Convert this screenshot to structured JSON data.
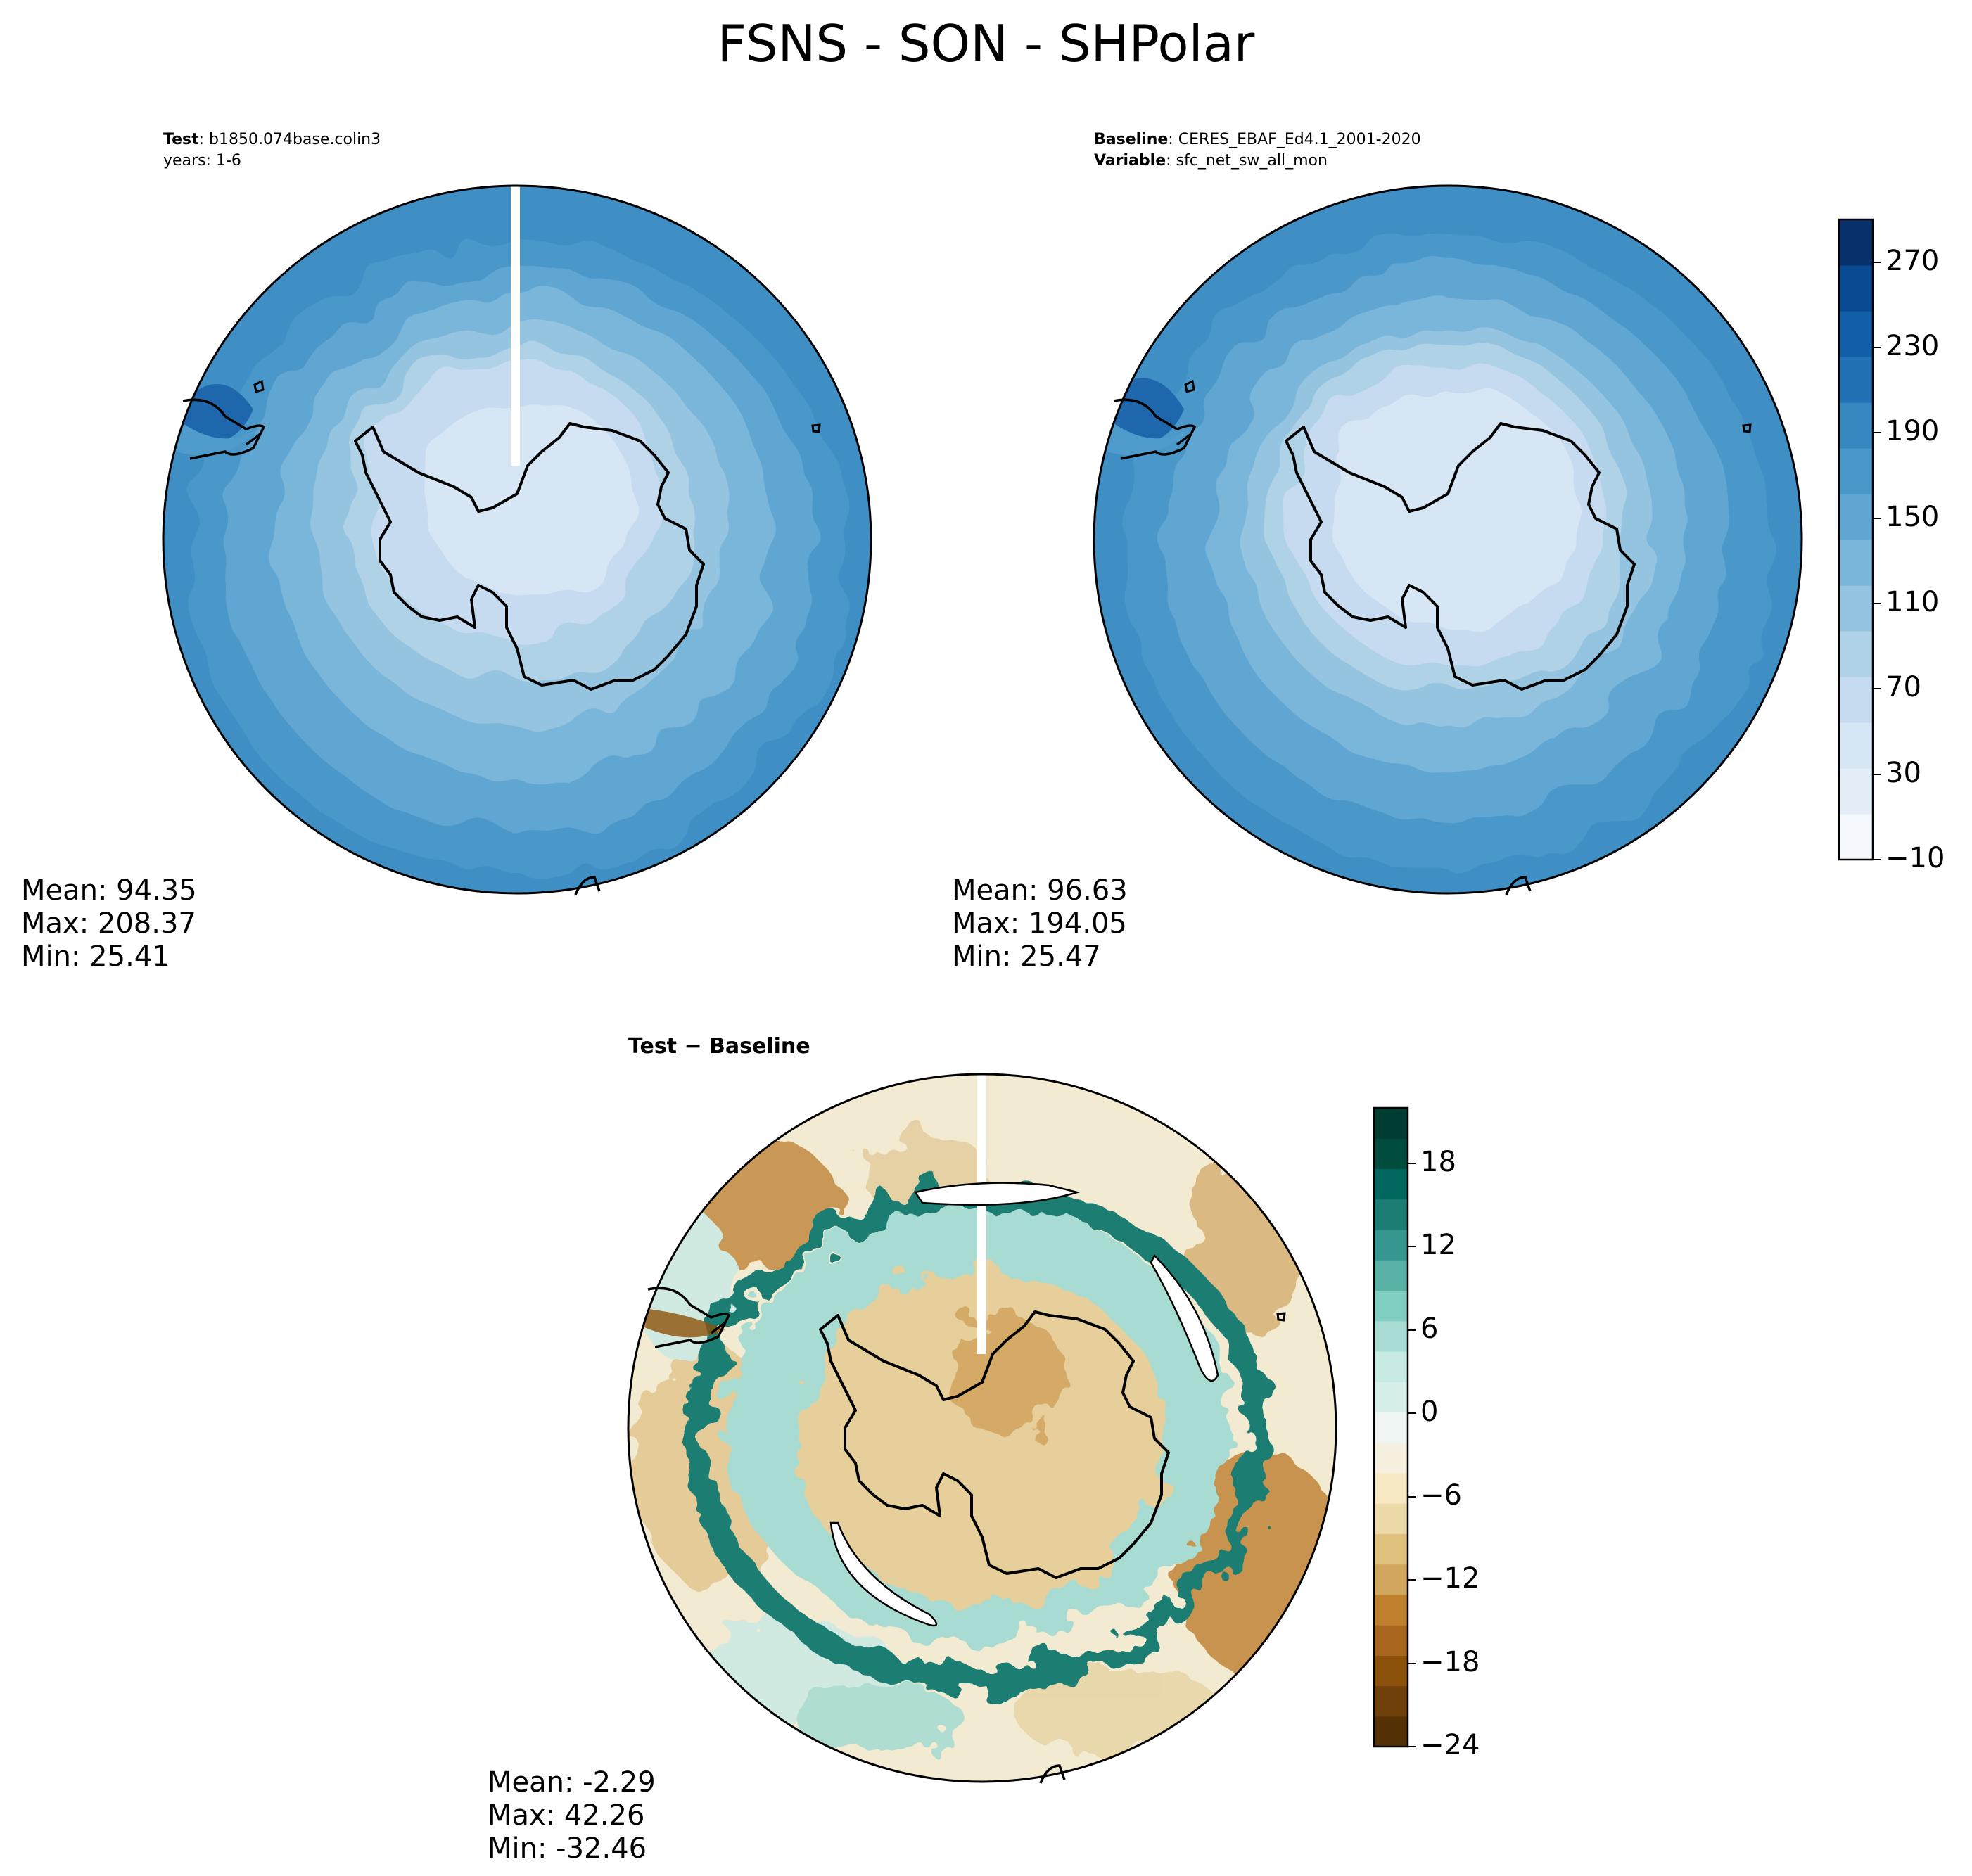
{
  "figure": {
    "title": "FSNS - SON - SHPolar"
  },
  "panels": {
    "test": {
      "label_bold": "Test",
      "label_text": ": b1850.074base.colin3",
      "line2": "years: 1-6",
      "mean": "Mean: 94.35",
      "max": "Max: 208.37",
      "min": "Min: 25.41"
    },
    "baseline": {
      "label_bold": "Baseline",
      "label_text": ": CERES_EBAF_Ed4.1_2001-2020",
      "line2_bold": "Variable",
      "line2_text": ": sfc_net_sw_all_mon",
      "mean": "Mean: 96.63",
      "max": "Max: 194.05",
      "min": "Min: 25.47"
    },
    "diff": {
      "title": "Test − Baseline",
      "mean": "Mean: -2.29",
      "max": "Max: 42.26",
      "min": "Min: -32.46"
    }
  },
  "colorbars": {
    "main": {
      "ticks": [
        "270",
        "230",
        "190",
        "150",
        "110",
        "70",
        "30",
        "−10"
      ],
      "range": [
        -10,
        290
      ],
      "colors": [
        "#f5f9fe",
        "#e3eef8",
        "#d6e6f4",
        "#c6dbef",
        "#b0d2e7",
        "#94c4df",
        "#7ab6d9",
        "#60a6d2",
        "#4a98c9",
        "#3787c0",
        "#2171b5",
        "#135fa7",
        "#084b93",
        "#08306b"
      ]
    },
    "diff": {
      "ticks": [
        "18",
        "12",
        "6",
        "0",
        "−6",
        "−12",
        "−18",
        "−24"
      ],
      "range": [
        -24,
        22
      ],
      "colors": [
        "#543005",
        "#6f3f09",
        "#8c510a",
        "#a9661e",
        "#bf812d",
        "#d1a65f",
        "#dfc27d",
        "#ecdba8",
        "#f6e8c3",
        "#f5f0e0",
        "#eef5f3",
        "#d6eee9",
        "#c7eae5",
        "#a8dcd2",
        "#80cdc1",
        "#5ab2a7",
        "#35978f",
        "#1b7d73",
        "#01665e",
        "#004d3e",
        "#003c30"
      ]
    }
  },
  "chart_data": [
    {
      "type": "heatmap",
      "title": "Test: b1850.074base.colin3",
      "subtitle": "years: 1-6",
      "map": "SHPolar",
      "stats": {
        "mean": 94.35,
        "max": 208.37,
        "min": 25.41
      },
      "colorbar_ticks": [
        -10,
        30,
        70,
        110,
        150,
        190,
        230,
        270
      ],
      "colorbar_range": [
        -10,
        290
      ]
    },
    {
      "type": "heatmap",
      "title": "Baseline: CERES_EBAF_Ed4.1_2001-2020",
      "subtitle": "Variable: sfc_net_sw_all_mon",
      "map": "SHPolar",
      "stats": {
        "mean": 96.63,
        "max": 194.05,
        "min": 25.47
      },
      "colorbar_ticks": [
        -10,
        30,
        70,
        110,
        150,
        190,
        230,
        270
      ],
      "colorbar_range": [
        -10,
        290
      ]
    },
    {
      "type": "heatmap",
      "title": "Test − Baseline",
      "map": "SHPolar",
      "stats": {
        "mean": -2.29,
        "max": 42.26,
        "min": -32.46
      },
      "colorbar_ticks": [
        -24,
        -18,
        -12,
        -6,
        0,
        6,
        12,
        18
      ],
      "colorbar_range": [
        -24,
        22
      ]
    }
  ]
}
